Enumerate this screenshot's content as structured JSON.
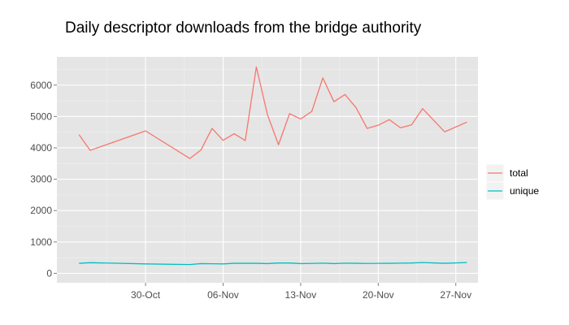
{
  "chart_data": {
    "type": "line",
    "title": "Daily descriptor downloads from the bridge authority",
    "xlabel": "",
    "ylabel": "",
    "x_tick_labels": [
      "30-Oct",
      "06-Nov",
      "13-Nov",
      "20-Nov",
      "27-Nov"
    ],
    "x_tick_dates": [
      "2010-10-30",
      "2010-11-06",
      "2010-11-13",
      "2010-11-20",
      "2010-11-27"
    ],
    "xlim": [
      "2010-10-22",
      "2010-11-29"
    ],
    "y_ticks": [
      0,
      1000,
      2000,
      3000,
      4000,
      5000,
      6000
    ],
    "ylim": [
      -300,
      6900
    ],
    "grid": true,
    "legend_position": "right",
    "colors": {
      "total": "#f8766d",
      "unique": "#00bfc4",
      "panel": "#e5e5e5",
      "grid": "#ffffff"
    },
    "series": [
      {
        "name": "total",
        "color": "#f8766d",
        "points": [
          [
            "2010-10-24",
            4420
          ],
          [
            "2010-10-25",
            3920
          ],
          [
            "2010-10-30",
            4540
          ],
          [
            "2010-11-03",
            3660
          ],
          [
            "2010-11-04",
            3930
          ],
          [
            "2010-11-05",
            4620
          ],
          [
            "2010-11-06",
            4240
          ],
          [
            "2010-11-07",
            4450
          ],
          [
            "2010-11-08",
            4230
          ],
          [
            "2010-11-09",
            6580
          ],
          [
            "2010-11-10",
            5060
          ],
          [
            "2010-11-11",
            4100
          ],
          [
            "2010-11-12",
            5090
          ],
          [
            "2010-11-13",
            4920
          ],
          [
            "2010-11-14",
            5160
          ],
          [
            "2010-11-15",
            6230
          ],
          [
            "2010-11-16",
            5470
          ],
          [
            "2010-11-17",
            5700
          ],
          [
            "2010-11-18",
            5280
          ],
          [
            "2010-11-19",
            4620
          ],
          [
            "2010-11-20",
            4720
          ],
          [
            "2010-11-21",
            4900
          ],
          [
            "2010-11-22",
            4640
          ],
          [
            "2010-11-23",
            4730
          ],
          [
            "2010-11-24",
            5250
          ],
          [
            "2010-11-26",
            4510
          ],
          [
            "2010-11-28",
            4820
          ]
        ]
      },
      {
        "name": "unique",
        "color": "#00bfc4",
        "points": [
          [
            "2010-10-24",
            320
          ],
          [
            "2010-10-25",
            340
          ],
          [
            "2010-10-30",
            300
          ],
          [
            "2010-11-03",
            280
          ],
          [
            "2010-11-04",
            310
          ],
          [
            "2010-11-05",
            305
          ],
          [
            "2010-11-06",
            300
          ],
          [
            "2010-11-07",
            320
          ],
          [
            "2010-11-08",
            320
          ],
          [
            "2010-11-09",
            320
          ],
          [
            "2010-11-10",
            310
          ],
          [
            "2010-11-11",
            330
          ],
          [
            "2010-11-12",
            330
          ],
          [
            "2010-11-13",
            310
          ],
          [
            "2010-11-14",
            315
          ],
          [
            "2010-11-15",
            325
          ],
          [
            "2010-11-16",
            310
          ],
          [
            "2010-11-17",
            325
          ],
          [
            "2010-11-18",
            320
          ],
          [
            "2010-11-19",
            315
          ],
          [
            "2010-11-20",
            318
          ],
          [
            "2010-11-21",
            320
          ],
          [
            "2010-11-22",
            325
          ],
          [
            "2010-11-23",
            330
          ],
          [
            "2010-11-24",
            345
          ],
          [
            "2010-11-26",
            320
          ],
          [
            "2010-11-28",
            345
          ]
        ]
      }
    ]
  }
}
